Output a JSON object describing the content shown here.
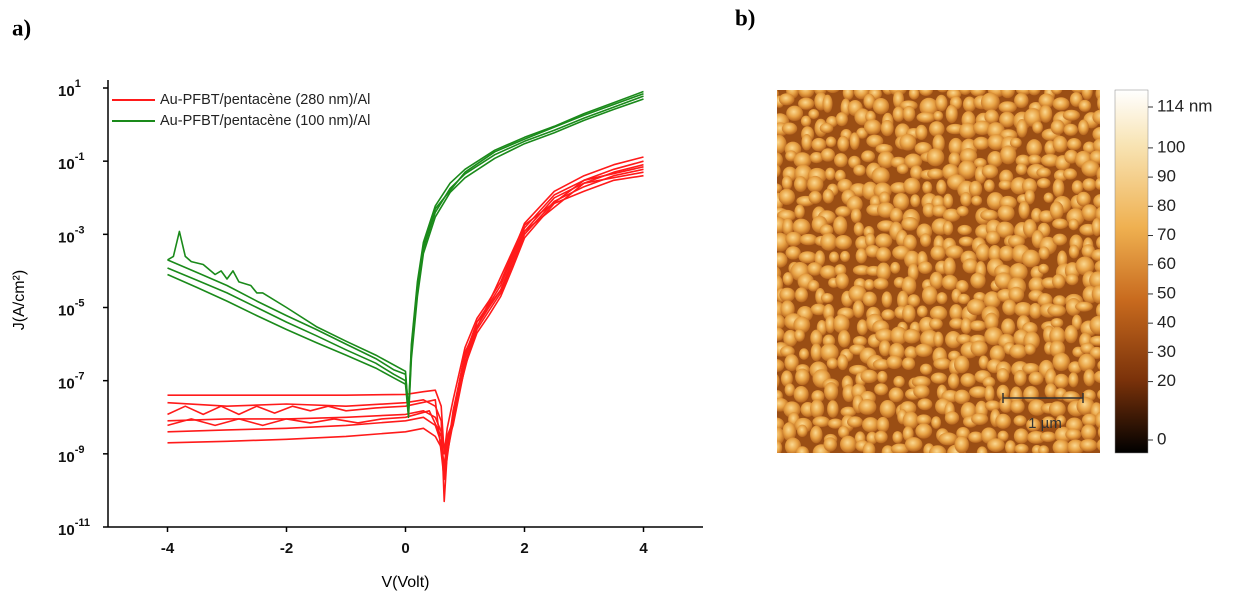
{
  "chart_data": [
    {
      "type": "line",
      "panel_label": "a)",
      "xlabel": "V(Volt)",
      "ylabel": "J(A/cm²)",
      "xlim": [
        -5,
        5
      ],
      "ylim": [
        1e-11,
        10
      ],
      "yscale": "log",
      "xticks": [
        -4,
        -2,
        0,
        2,
        4
      ],
      "yticks": [
        {
          "value": 10,
          "label": "10",
          "exponent": "1"
        },
        {
          "value": 0.1,
          "label": "10",
          "exponent": "-1"
        },
        {
          "value": 0.001,
          "label": "10",
          "exponent": "-3"
        },
        {
          "value": 1e-05,
          "label": "10",
          "exponent": "-5"
        },
        {
          "value": 1e-07,
          "label": "10",
          "exponent": "-7"
        },
        {
          "value": 1e-09,
          "label": "10",
          "exponent": "-9"
        },
        {
          "value": 1e-11,
          "label": "10",
          "exponent": "-11"
        }
      ],
      "legend": "upper left",
      "series": [
        {
          "name": "Au-PFBT/pentacène (280 nm)/Al",
          "color": "#ff1a1a",
          "x": [
            -4,
            -3,
            -2,
            -1,
            0,
            0.3,
            0.5,
            0.6,
            0.65,
            0.7,
            0.8,
            1,
            1.2,
            1.4,
            1.6,
            1.8,
            2,
            2.5,
            3,
            3.5,
            4
          ],
          "values": [
            4e-08,
            4e-08,
            4e-08,
            4e-08,
            4.2e-08,
            5e-08,
            5.5e-08,
            2e-08,
            1e-09,
            5e-09,
            3e-08,
            8e-07,
            5e-06,
            1.5e-05,
            5e-05,
            0.0003,
            0.002,
            0.015,
            0.04,
            0.08,
            0.13
          ]
        },
        {
          "color": "#ff1a1a",
          "x": [
            -4,
            -3,
            -2,
            -1,
            0,
            0.3,
            0.5,
            0.6,
            0.65,
            0.7,
            0.8,
            1,
            1.2,
            1.4,
            1.6,
            1.8,
            2,
            2.5,
            3,
            3.5,
            4
          ],
          "values": [
            2.5e-08,
            2e-08,
            2.3e-08,
            2e-08,
            2.5e-08,
            3e-08,
            2e-08,
            8e-09,
            5e-11,
            1e-09,
            1.5e-08,
            5e-07,
            4e-06,
            1.2e-05,
            4e-05,
            0.00025,
            0.0015,
            0.012,
            0.03,
            0.06,
            0.1
          ]
        },
        {
          "color": "#ff1a1a",
          "x": [
            -4,
            -3,
            -2,
            -1,
            0,
            0.3,
            0.5,
            0.6,
            0.65,
            0.7,
            0.8,
            1,
            1.2,
            1.4,
            1.6,
            1.8,
            2,
            2.5,
            3,
            3.5,
            4
          ],
          "values": [
            8e-09,
            9e-09,
            9e-09,
            1e-08,
            1.2e-08,
            1.5e-08,
            1e-08,
            4e-09,
            3e-10,
            2e-09,
            1e-08,
            4e-07,
            3e-06,
            1e-05,
            3e-05,
            0.0002,
            0.0012,
            0.01,
            0.025,
            0.05,
            0.08
          ]
        },
        {
          "color": "#ff1a1a",
          "x": [
            -4,
            -3,
            -2,
            -1,
            0,
            0.3,
            0.5,
            0.6,
            0.65,
            0.7,
            0.8,
            1,
            1.2,
            1.4,
            1.6,
            1.8,
            2,
            2.5,
            3,
            3.5,
            4
          ],
          "values": [
            4e-09,
            4.5e-09,
            5e-09,
            6e-09,
            8e-09,
            1e-08,
            6e-09,
            2e-09,
            4e-10,
            3e-09,
            8e-09,
            3e-07,
            2.5e-06,
            8e-06,
            2.5e-05,
            0.00015,
            0.001,
            0.008,
            0.02,
            0.04,
            0.06
          ]
        },
        {
          "color": "#ff1a1a",
          "x": [
            -4,
            -3,
            -2,
            -1,
            0,
            0.3,
            0.5,
            0.6,
            0.65,
            0.7,
            0.8,
            1,
            1.2,
            1.4,
            1.6,
            1.8,
            2,
            2.5,
            3,
            3.5,
            4
          ],
          "values": [
            2e-09,
            2.2e-09,
            2.5e-09,
            3e-09,
            4e-09,
            5e-09,
            3e-09,
            1.5e-09,
            5e-10,
            2e-09,
            6e-09,
            2.5e-07,
            2e-06,
            6e-06,
            2e-05,
            0.00012,
            0.0008,
            0.007,
            0.015,
            0.03,
            0.04
          ]
        },
        {
          "color": "#ff1a1a",
          "x": [
            -4,
            -3.7,
            -3.4,
            -3.1,
            -2.8,
            -2.5,
            -2.2,
            -1.9,
            -1.6,
            -1.3,
            -1,
            -0.5,
            0,
            0.5,
            0.65,
            0.8,
            1,
            1.5,
            2,
            3,
            4
          ],
          "values": [
            1.2e-08,
            2e-08,
            1.2e-08,
            2e-08,
            1.2e-08,
            2e-08,
            1.3e-08,
            2e-08,
            1.5e-08,
            2e-08,
            1.5e-08,
            1.8e-08,
            2e-08,
            3e-08,
            2e-10,
            1.2e-08,
            6e-07,
            3e-05,
            0.0018,
            0.03,
            0.07
          ]
        },
        {
          "color": "#ff1a1a",
          "x": [
            -4,
            -3.6,
            -3.2,
            -2.8,
            -2.4,
            -2,
            -1.6,
            -1.2,
            -0.8,
            -0.4,
            0,
            0.4,
            0.6,
            0.7,
            0.9,
            1.2,
            1.6,
            2,
            3,
            4
          ],
          "values": [
            6e-09,
            9e-09,
            6e-09,
            9e-09,
            6e-09,
            9e-09,
            7e-09,
            9e-09,
            7e-09,
            9e-09,
            1e-08,
            1.5e-08,
            3e-09,
            1e-09,
            5e-08,
            4e-06,
            3e-05,
            0.0012,
            0.025,
            0.05
          ]
        },
        {
          "name": "Au-PFBT/pentacène (100 nm)/Al",
          "color": "#1a8a1a",
          "x": [
            -4,
            -3.5,
            -3,
            -2.5,
            -2,
            -1.5,
            -1,
            -0.5,
            -0.2,
            0,
            0.05,
            0.1,
            0.2,
            0.3,
            0.5,
            0.75,
            1,
            1.5,
            2,
            2.5,
            3,
            3.5,
            4
          ],
          "values": [
            0.0002,
            9e-05,
            4e-05,
            1.5e-05,
            6e-06,
            2.5e-06,
            1e-06,
            4e-07,
            2e-07,
            1.5e-07,
            1.5e-08,
            1e-06,
            5e-05,
            0.0006,
            0.006,
            0.025,
            0.06,
            0.2,
            0.45,
            0.9,
            2,
            4,
            8
          ]
        },
        {
          "color": "#1a8a1a",
          "x": [
            -4,
            -3.5,
            -3,
            -2.5,
            -2,
            -1.5,
            -1,
            -0.5,
            -0.2,
            0,
            0.05,
            0.1,
            0.2,
            0.3,
            0.5,
            0.75,
            1,
            1.5,
            2,
            2.5,
            3,
            3.5,
            4
          ],
          "values": [
            0.00012,
            5.5e-05,
            2.5e-05,
            1e-05,
            4e-06,
            1.7e-06,
            7e-07,
            3e-07,
            1.5e-07,
            1e-07,
            1.2e-08,
            6e-07,
            3e-05,
            0.0004,
            0.004,
            0.018,
            0.045,
            0.15,
            0.35,
            0.7,
            1.5,
            3,
            6
          ]
        },
        {
          "color": "#1a8a1a",
          "x": [
            -4,
            -3.5,
            -3,
            -2.5,
            -2,
            -1.5,
            -1,
            -0.5,
            -0.2,
            0,
            0.05,
            0.1,
            0.2,
            0.3,
            0.5,
            0.75,
            1,
            1.5,
            2,
            2.5,
            3,
            3.5,
            4
          ],
          "values": [
            8e-05,
            3.5e-05,
            1.5e-05,
            6e-06,
            2.5e-06,
            1.1e-06,
            5e-07,
            2.2e-07,
            1.2e-07,
            8e-08,
            1e-08,
            4e-07,
            2e-05,
            0.0003,
            0.003,
            0.014,
            0.035,
            0.12,
            0.3,
            0.6,
            1.3,
            2.6,
            5
          ]
        },
        {
          "color": "#1a8a1a",
          "x": [
            -4,
            -3.9,
            -3.8,
            -3.7,
            -3.6,
            -3.4,
            -3.2,
            -3.1,
            -3,
            -2.9,
            -2.8,
            -2.6,
            -2.5,
            -2.4,
            -2,
            -1.5,
            -1,
            -0.5,
            0,
            0.05,
            0.1,
            0.2,
            0.3,
            0.5,
            1,
            1.5,
            2,
            3,
            4
          ],
          "values": [
            0.0002,
            0.00025,
            0.0012,
            0.00025,
            0.00018,
            0.00015,
            8e-05,
            0.0001,
            6e-05,
            0.0001,
            5e-05,
            4e-05,
            2.5e-05,
            2.5e-05,
            1e-05,
            3e-06,
            1.2e-06,
            5e-07,
            1.8e-07,
            1.4e-08,
            8e-07,
            4e-05,
            0.0005,
            0.005,
            0.05,
            0.18,
            0.4,
            1.8,
            7
          ]
        }
      ]
    },
    {
      "type": "image",
      "panel_label": "b)",
      "colorbar": {
        "lim": [
          0,
          114
        ],
        "ticks": [
          {
            "value": 114,
            "label": "114 nm"
          },
          100,
          90,
          80,
          70,
          60,
          50,
          40,
          30,
          20,
          0
        ]
      },
      "scale_bar": "1 µm"
    }
  ]
}
